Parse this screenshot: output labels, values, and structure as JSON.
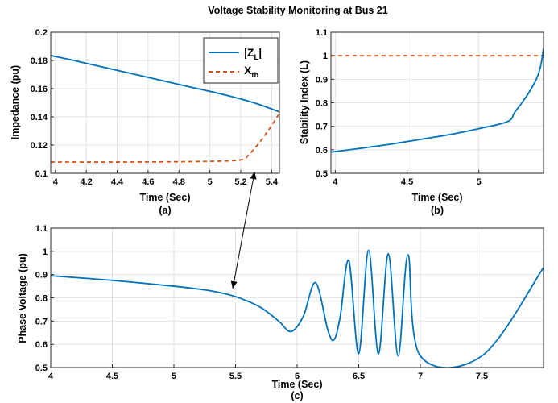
{
  "figure_title": "Voltage Stability Monitoring at Bus 21",
  "colors": {
    "series_blue": "#0072BD",
    "series_orange": "#D95319"
  },
  "chart_data": [
    {
      "id": "a",
      "type": "line",
      "caption": "(a)",
      "xlabel": "Time (Sec)",
      "ylabel": "Impedance (pu)",
      "xlim": [
        3.97,
        5.45
      ],
      "ylim": [
        0.1,
        0.2
      ],
      "xticks": [
        4,
        4.2,
        4.4,
        4.6,
        4.8,
        5,
        5.2,
        5.4
      ],
      "xtick_labels": [
        "4",
        "4.2",
        "4.4",
        "4.6",
        "4.8",
        "5",
        "5.2",
        "5.4"
      ],
      "yticks": [
        0.1,
        0.12,
        0.14,
        0.16,
        0.18,
        0.2
      ],
      "ytick_labels": [
        "0.1",
        "0.12",
        "0.14",
        "0.16",
        "0.18",
        "0.2"
      ],
      "grid": true,
      "legend_position": "top-right",
      "series": [
        {
          "name": "|Z",
          "name_sub": "L",
          "name_suffix": "|",
          "style": "solid",
          "color": "#0072BD",
          "x": [
            3.97,
            4.1,
            4.3,
            4.5,
            4.7,
            4.9,
            5.1,
            5.3,
            5.45
          ],
          "y": [
            0.1835,
            0.1805,
            0.1755,
            0.1705,
            0.1655,
            0.1605,
            0.1555,
            0.1495,
            0.1435
          ]
        },
        {
          "name": "X",
          "name_sub": "th",
          "name_suffix": "",
          "style": "dashed",
          "color": "#D95319",
          "x": [
            3.97,
            4.5,
            5.0,
            5.2,
            5.25,
            5.3,
            5.35,
            5.4,
            5.45
          ],
          "y": [
            0.108,
            0.108,
            0.1085,
            0.1095,
            0.113,
            0.119,
            0.126,
            0.134,
            0.1425
          ]
        }
      ]
    },
    {
      "id": "b",
      "type": "line",
      "caption": "(b)",
      "xlabel": "Time (Sec)",
      "ylabel": "Stability Index (L)",
      "xlim": [
        3.97,
        5.45
      ],
      "ylim": [
        0.5,
        1.1
      ],
      "xticks": [
        4,
        4.5,
        5
      ],
      "xtick_labels": [
        "4",
        "4.5",
        "5"
      ],
      "yticks": [
        0.5,
        0.6,
        0.7,
        0.8,
        0.9,
        1.0,
        1.1
      ],
      "ytick_labels": [
        "0.5",
        "0.6",
        "0.7",
        "0.8",
        "0.9",
        "1",
        "1.1"
      ],
      "grid": true,
      "series": [
        {
          "style": "dashed",
          "color": "#D95319",
          "x": [
            3.97,
            5.45
          ],
          "y": [
            1.0,
            1.0
          ]
        },
        {
          "style": "solid",
          "color": "#0072BD",
          "x": [
            3.97,
            4.2,
            4.4,
            4.6,
            4.8,
            5.0,
            5.2,
            5.25,
            5.3,
            5.35,
            5.4,
            5.43,
            5.45
          ],
          "y": [
            0.59,
            0.608,
            0.625,
            0.645,
            0.665,
            0.69,
            0.72,
            0.76,
            0.8,
            0.845,
            0.9,
            0.955,
            1.03
          ]
        }
      ]
    },
    {
      "id": "c",
      "type": "line",
      "caption": "(c)",
      "xlabel": "Time (Sec)",
      "ylabel": "Phase Voltage (pu)",
      "xlim": [
        4.0,
        8.0
      ],
      "ylim": [
        0.5,
        1.1
      ],
      "xticks": [
        4,
        4.5,
        5,
        5.5,
        6,
        6.5,
        7,
        7.5
      ],
      "xtick_labels": [
        "4",
        "4.5",
        "5",
        "5.5",
        "6",
        "6.5",
        "7",
        "7.5"
      ],
      "yticks": [
        0.5,
        0.6,
        0.7,
        0.8,
        0.9,
        1.0,
        1.1
      ],
      "ytick_labels": [
        "0.5",
        "0.6",
        "0.7",
        "0.8",
        "0.9",
        "1",
        "1.1"
      ],
      "grid": true,
      "series": [
        {
          "style": "solid",
          "color": "#0072BD",
          "description": "smooth decline then growing oscillation",
          "x": [
            4.0,
            4.5,
            5.0,
            5.3,
            5.5,
            5.7,
            5.85,
            5.95,
            6.05,
            6.15,
            6.25,
            6.3,
            6.35,
            6.42,
            6.5,
            6.58,
            6.66,
            6.74,
            6.82,
            6.9,
            7.0,
            7.5,
            8.0
          ],
          "y": [
            0.895,
            0.875,
            0.85,
            0.83,
            0.805,
            0.76,
            0.7,
            0.655,
            0.72,
            0.865,
            0.66,
            0.62,
            0.72,
            0.96,
            0.56,
            1.005,
            0.56,
            0.99,
            0.55,
            0.985,
            0.55,
            0.55,
            0.93
          ]
        }
      ]
    }
  ]
}
